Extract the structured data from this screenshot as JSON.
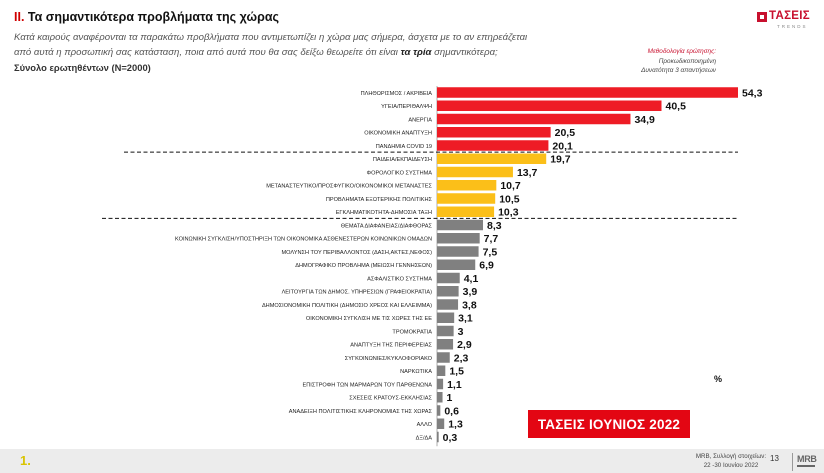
{
  "header": {
    "title_num": "ΙΙ.",
    "title_text": "Τα σημαντικότερα προβλήματα της χώρας",
    "subtitle_line1": "Κατά καιρούς αναφέρονται τα παρακάτω προβλήματα που αντιμετωπίζει η χώρα μας σήμερα, άσχετα με το αν επηρεάζεται",
    "subtitle_line2_pre": "από αυτά η προσωπική σας κατάσταση, ποια από αυτά που θα σας δείξω θεωρείτε ότι είναι",
    "subtitle_line2_bold": "τα τρία",
    "subtitle_line2_post": "σημαντικότερα;",
    "total": "Σύνολο ερωτηθέντων (N=2000)"
  },
  "logo": {
    "name": "ΤΑΣΕΙΣ",
    "sub": "TRENDS"
  },
  "methodology": {
    "title": "Μεθοδολογία ερώτησης:",
    "line1": "Προκωδικοποιημένη",
    "line2": "Δυνατότητα 3 απαντήσεων"
  },
  "unit_label": "%",
  "badge": "ΤΑΣΕΙΣ ΙΟΥΝΙΟΣ 2022",
  "footer": {
    "page_id": "1.",
    "source_line1": "MRB, Συλλογή στοιχείων:",
    "source_line2": "22 -30 Ιουνίου 2022",
    "page_number": "13",
    "mrb": "MRB"
  },
  "colors": {
    "red": "#ee1c25",
    "yellow": "#fbbf19",
    "gray": "#808080"
  },
  "chart_data": {
    "type": "bar",
    "orientation": "horizontal",
    "title": "Τα σημαντικότερα προβλήματα της χώρας",
    "unit": "%",
    "xlim": [
      0,
      55
    ],
    "grid": false,
    "categories": [
      "ΠΛΗΘΩΡΙΣΜΟΣ / ΑΚΡΙΒΕΙΑ",
      "ΥΓΕΙΑ/ΠΕΡΙΘΑΛΨΗ",
      "ΑΝΕΡΓΙΑ",
      "ΟΙΚΟΝΟΜΙΚΗ ΑΝΑΠΤΥΞΗ",
      "ΠΑΝΔΗΜΙΑ COVID 19",
      "ΠΑΙΔΕΙΑ/ΕΚΠΑΙΔΕΥΣΗ",
      "ΦΟΡΟΛΟΓΙΚΟ ΣΥΣΤΗΜΑ",
      "ΜΕΤΑΝΑΣΤΕΥΤΙΚΟ/ΠΡΟΣΦΥΓΙΚΟ/ΟΙΚΟΝΟΜΙΚΟΙ ΜΕΤΑΝΑΣΤΕΣ",
      "ΠΡΟΒΛΗΜΑΤΑ ΕΞΩΤΕΡΙΚΗΣ ΠΟΛΙΤΙΚΗΣ",
      "ΕΓΚΛΗΜΑΤΙΚΟΤΗΤΑ-ΔΗΜΟΣΙΑ ΤΑΞΗ",
      "ΘΕΜΑΤΑ ΔΙΑΦΑΝΕΙΑΣ/ΔΙΑΦΘΟΡΑΣ",
      "ΚΟΙΝΩΝΙΚΗ ΣΥΓΚΛΙΣΗ/ΥΠΟΣΤΗΡΙΞΗ ΤΩΝ ΟΙΚΟΝΟΜΙΚΑ ΑΣΘΕΝΕΣΤΕΡΩΝ ΚΟΙΝΩΝΙΚΩΝ ΟΜΑΔΩΝ",
      "ΜΟΛΥΝΣΗ ΤΟΥ ΠΕΡΙΒΑΛΛΟΝΤΟΣ (ΔΑΣΗ,ΑΚΤΕΣ,ΝΕΦΟΣ)",
      "ΔΗΜΟΓΡΑΦΙΚΟ ΠΡΟΒΛΗΜΑ (ΜΕΙΩΣΗ ΓΕΝΝΗΣΕΩΝ)",
      "ΑΣΦΑΛΙΣΤΙΚΟ ΣΥΣΤΗΜΑ",
      "ΛΕΙΤΟΥΡΓΙΑ ΤΩΝ ΔΗΜΟΣ. ΥΠΗΡΕΣΙΩΝ (ΓΡΑΦΕΙΟΚΡΑΤΙΑ)",
      "ΔΗΜΟΣΙΟΝΟΜΙΚΗ ΠΟΛΙΤΙΚΗ (ΔΗΜΟΣΙΟ ΧΡΕΟΣ ΚΑΙ ΕΛΛΕΙΜΜΑ)",
      "ΟΙΚΟΝΟΜΙΚΗ ΣΥΓΚΛΙΣΗ ΜΕ ΤΙΣ ΧΩΡΕΣ ΤΗΣ ΕΕ",
      "ΤΡΟΜΟΚΡΑΤΙΑ",
      "ΑΝΑΠΤΥΞΗ ΤΗΣ ΠΕΡΙΦΕΡΕΙΑΣ",
      "ΣΥΓΚΟΙΝΩΝΙΕΣ/ΚΥΚΛΟΦΟΡΙΑΚΟ",
      "ΝΑΡΚΩΤΙΚΑ",
      "ΕΠΙΣΤΡΟΦΗ ΤΩΝ ΜΑΡΜΑΡΩΝ ΤΟΥ ΠΑΡΘΕΝΩΝΑ",
      "ΣΧΕΣΕΙΣ ΚΡΑΤΟΥΣ-ΕΚΚΛΗΣΙΑΣ",
      "ΑΝΑΔΕΙΞΗ ΠΟΛΙΤΙΣΤΙΚΗΣ ΚΛΗΡΟΝΟΜΙΑΣ ΤΗΣ ΧΩΡΑΣ",
      "ΑΛΛΟ",
      "ΔΞ/ΔΑ"
    ],
    "values": [
      54.3,
      40.5,
      34.9,
      20.5,
      20.1,
      19.7,
      13.7,
      10.7,
      10.5,
      10.3,
      8.3,
      7.7,
      7.5,
      6.9,
      4.1,
      3.9,
      3.8,
      3.1,
      3,
      2.9,
      2.3,
      1.5,
      1.1,
      1,
      0.6,
      1.3,
      0.3
    ],
    "value_labels": [
      "54,3",
      "40,5",
      "34,9",
      "20,5",
      "20,1",
      "19,7",
      "13,7",
      "10,7",
      "10,5",
      "10,3",
      "8,3",
      "7,7",
      "7,5",
      "6,9",
      "4,1",
      "3,9",
      "3,8",
      "3,1",
      "3",
      "2,9",
      "2,3",
      "1,5",
      "1,1",
      "1",
      "0,6",
      "1,3",
      "0,3"
    ],
    "groups": [
      {
        "name": "top",
        "color": "red",
        "count": 5
      },
      {
        "name": "middle",
        "color": "yellow",
        "count": 5
      },
      {
        "name": "rest",
        "color": "gray",
        "count": 17
      }
    ]
  }
}
